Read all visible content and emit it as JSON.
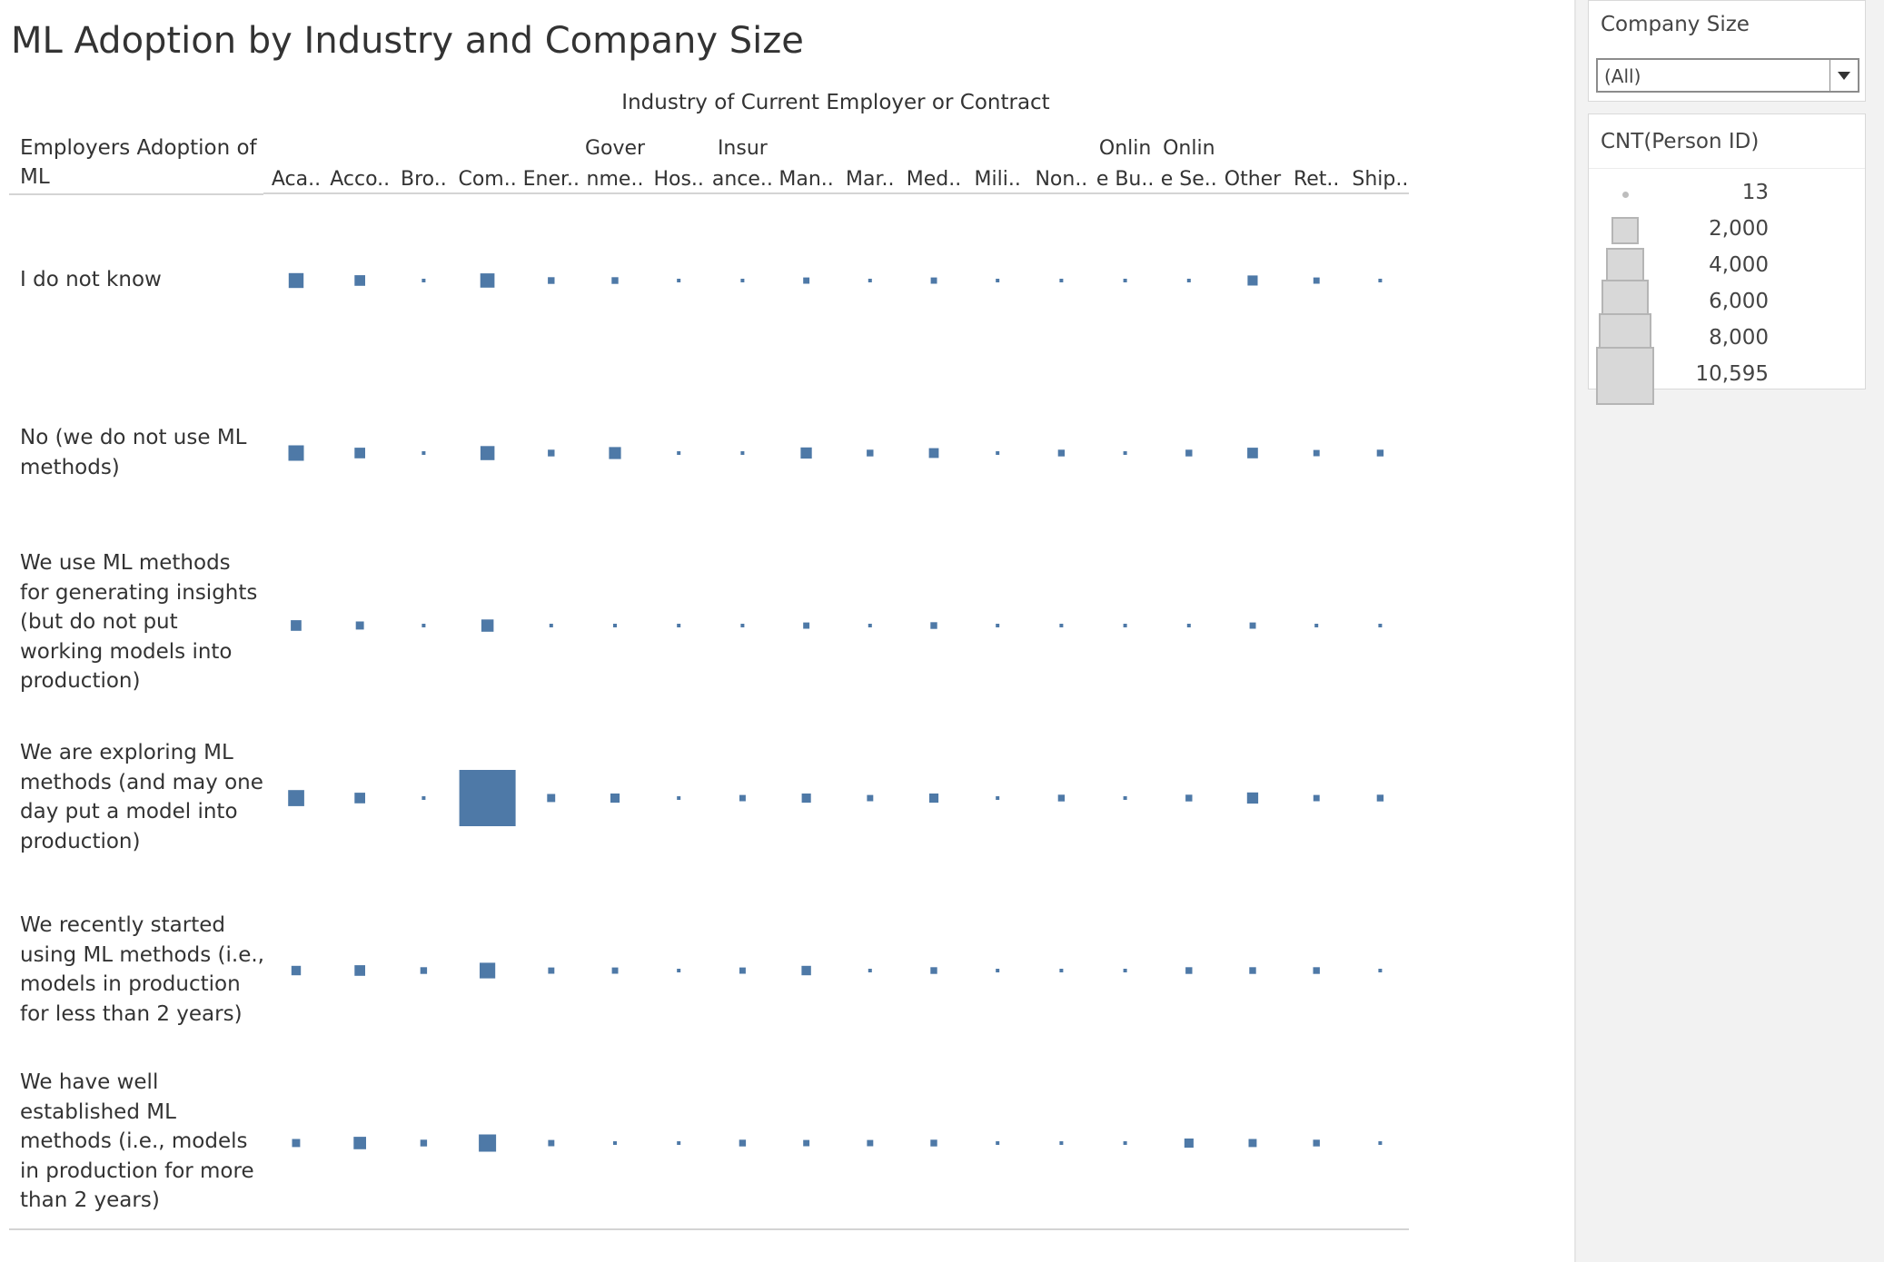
{
  "title": "ML Adoption by Industry and Company Size",
  "filter": {
    "title": "Company Size",
    "value": "(All)"
  },
  "legend": {
    "title": "CNT(Person ID)",
    "items": [
      "13",
      "2,000",
      "4,000",
      "6,000",
      "8,000",
      "10,595"
    ]
  },
  "colors": {
    "mark": "#4e79a7",
    "legend_swatch": "#d8d8d8"
  },
  "chart_data": {
    "type": "table",
    "mark": "square",
    "title": "ML Adoption by Industry and Company Size",
    "column_header": "Industry of Current Employer or Contract",
    "row_header": "Employers Adoption of ML",
    "size_measure": "CNT(Person ID)",
    "size_range": [
      13,
      10595
    ],
    "columns": [
      "Aca..",
      "Acco..",
      "Bro..",
      "Com..",
      "Ener..",
      "Gover nme..",
      "Hos..",
      "Insur ance..",
      "Man..",
      "Mar..",
      "Med..",
      "Mili..",
      "Non..",
      "Onlin e Bu..",
      "Onlin e Se..",
      "Other",
      "Ret..",
      "Ship.."
    ],
    "rows": [
      "I do not know",
      "No (we do not use ML methods)",
      "We use ML methods for generating insights (but do not put working models into production)",
      "We are exploring ML methods (and may one day put a model into production)",
      "We recently started using ML methods (i.e., models in production for less than 2 years)",
      "We have well established ML methods (i.e., models in production for more than 2 years)"
    ],
    "values": [
      [
        740,
        380,
        30,
        680,
        150,
        150,
        30,
        30,
        130,
        30,
        130,
        30,
        30,
        30,
        30,
        340,
        130,
        30
      ],
      [
        800,
        380,
        30,
        660,
        150,
        480,
        30,
        30,
        420,
        150,
        320,
        30,
        150,
        30,
        150,
        380,
        130,
        150
      ],
      [
        380,
        220,
        30,
        500,
        30,
        30,
        30,
        30,
        130,
        30,
        150,
        30,
        30,
        30,
        30,
        130,
        30,
        30
      ],
      [
        860,
        380,
        30,
        10595,
        220,
        280,
        30,
        130,
        280,
        130,
        280,
        30,
        150,
        30,
        150,
        420,
        130,
        150
      ],
      [
        300,
        380,
        150,
        820,
        130,
        130,
        30,
        130,
        300,
        30,
        150,
        30,
        30,
        30,
        150,
        150,
        150,
        30
      ],
      [
        220,
        520,
        150,
        990,
        130,
        30,
        30,
        150,
        130,
        130,
        150,
        30,
        30,
        30,
        280,
        220,
        150,
        30
      ]
    ]
  }
}
